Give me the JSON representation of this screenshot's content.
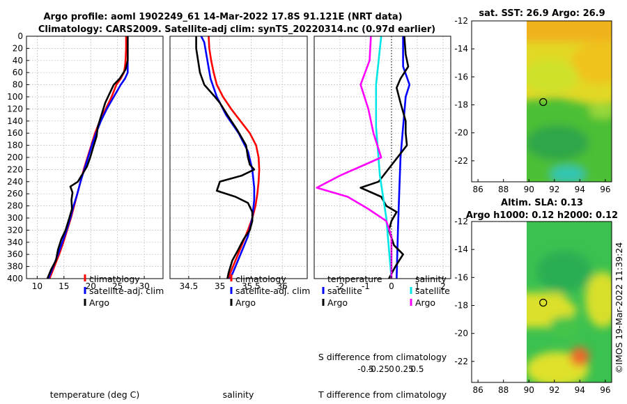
{
  "header": {
    "title_line1": "Argo profile: aoml 1902249_61 14-Mar-2022 17.8S 91.121E (NRT data)",
    "title_line2": "Climatology: CARS2009. Satellite-adj clim: synTS_20220314.nc (0.97d earlier)"
  },
  "colors": {
    "climatology": "#ff0000",
    "satellite": "#0000ff",
    "argo": "#000000",
    "salinity_satellite": "#00e5e5",
    "salinity_argo": "#ff00ff"
  },
  "watermark": "©IMOS 19-Mar-2022 11:39:24",
  "chart_data": [
    {
      "type": "line",
      "id": "temperature",
      "xlabel": "temperature (deg C)",
      "ylabel": "",
      "xlim": [
        8,
        33.5
      ],
      "ylim": [
        400,
        0
      ],
      "xticks": [
        "10",
        "15",
        "20",
        "25",
        "30"
      ],
      "xtick_values": [
        10,
        15,
        20,
        25,
        30
      ],
      "yticks": [
        "0",
        "20",
        "40",
        "60",
        "80",
        "100",
        "120",
        "140",
        "160",
        "180",
        "200",
        "220",
        "240",
        "260",
        "280",
        "300",
        "320",
        "340",
        "360",
        "380",
        "400"
      ],
      "ytick_values": [
        0,
        20,
        40,
        60,
        80,
        100,
        120,
        140,
        160,
        180,
        200,
        220,
        240,
        260,
        280,
        300,
        320,
        340,
        360,
        380,
        400
      ],
      "legend": [
        "climatology",
        "satellite-adj. clim",
        "Argo"
      ],
      "series": [
        {
          "name": "climatology",
          "color": "#ff0000",
          "points": [
            [
              26.6,
              0
            ],
            [
              26.6,
              20
            ],
            [
              26.5,
              40
            ],
            [
              26.4,
              50
            ],
            [
              26.2,
              60
            ],
            [
              25.6,
              70
            ],
            [
              24.8,
              80
            ],
            [
              23.9,
              100
            ],
            [
              22.8,
              120
            ],
            [
              21.7,
              140
            ],
            [
              20.8,
              160
            ],
            [
              20.1,
              180
            ],
            [
              19.4,
              200
            ],
            [
              18.7,
              220
            ],
            [
              18.1,
              240
            ],
            [
              17.5,
              260
            ],
            [
              16.9,
              280
            ],
            [
              16.3,
              300
            ],
            [
              15.6,
              320
            ],
            [
              14.9,
              340
            ],
            [
              14.1,
              360
            ],
            [
              13.2,
              380
            ],
            [
              12.3,
              400
            ]
          ]
        },
        {
          "name": "satellite-adj. clim",
          "color": "#0000ff",
          "points": [
            [
              26.9,
              0
            ],
            [
              26.9,
              20
            ],
            [
              26.9,
              40
            ],
            [
              26.9,
              50
            ],
            [
              26.9,
              60
            ],
            [
              26.4,
              70
            ],
            [
              25.6,
              80
            ],
            [
              24.3,
              100
            ],
            [
              23.0,
              120
            ],
            [
              21.9,
              140
            ],
            [
              21.0,
              160
            ],
            [
              20.2,
              180
            ],
            [
              19.5,
              200
            ],
            [
              18.8,
              220
            ],
            [
              18.1,
              240
            ],
            [
              17.5,
              260
            ],
            [
              16.8,
              280
            ],
            [
              16.2,
              300
            ],
            [
              15.5,
              320
            ],
            [
              14.7,
              340
            ],
            [
              13.9,
              360
            ],
            [
              13.0,
              380
            ],
            [
              12.1,
              400
            ]
          ]
        },
        {
          "name": "Argo",
          "color": "#000000",
          "points": [
            [
              26.9,
              0
            ],
            [
              26.9,
              20
            ],
            [
              26.9,
              40
            ],
            [
              26.5,
              55
            ],
            [
              25.4,
              70
            ],
            [
              24.3,
              80
            ],
            [
              23.5,
              95
            ],
            [
              22.7,
              110
            ],
            [
              22.0,
              130
            ],
            [
              21.3,
              150
            ],
            [
              21.1,
              165
            ],
            [
              20.4,
              185
            ],
            [
              19.9,
              200
            ],
            [
              19.3,
              215
            ],
            [
              17.6,
              240
            ],
            [
              16.2,
              248
            ],
            [
              16.6,
              258
            ],
            [
              16.4,
              270
            ],
            [
              16.5,
              285
            ],
            [
              16.0,
              300
            ],
            [
              15.3,
              320
            ],
            [
              14.5,
              335
            ],
            [
              13.9,
              352
            ],
            [
              13.5,
              370
            ],
            [
              12.6,
              385
            ],
            [
              11.9,
              400
            ]
          ]
        }
      ]
    },
    {
      "type": "line",
      "id": "salinity",
      "xlabel": "salinity",
      "xlim": [
        34.2,
        36.4
      ],
      "ylim": [
        400,
        0
      ],
      "xticks": [
        "34.5",
        "35",
        "35.5",
        "36"
      ],
      "xtick_values": [
        34.5,
        35.0,
        35.5,
        36.0
      ],
      "legend": [
        "climatology",
        "satellite-adj. clim",
        "Argo"
      ],
      "series": [
        {
          "name": "climatology",
          "color": "#ff0000",
          "points": [
            [
              34.82,
              0
            ],
            [
              34.83,
              20
            ],
            [
              34.86,
              40
            ],
            [
              34.9,
              60
            ],
            [
              34.95,
              80
            ],
            [
              35.05,
              100
            ],
            [
              35.18,
              120
            ],
            [
              35.33,
              140
            ],
            [
              35.48,
              160
            ],
            [
              35.58,
              180
            ],
            [
              35.62,
              200
            ],
            [
              35.63,
              220
            ],
            [
              35.62,
              240
            ],
            [
              35.6,
              260
            ],
            [
              35.57,
              280
            ],
            [
              35.52,
              300
            ],
            [
              35.45,
              320
            ],
            [
              35.37,
              340
            ],
            [
              35.29,
              360
            ],
            [
              35.21,
              380
            ],
            [
              35.13,
              400
            ]
          ]
        },
        {
          "name": "satellite-adj. clim",
          "color": "#0000ff",
          "points": [
            [
              34.7,
              0
            ],
            [
              34.75,
              10
            ],
            [
              34.8,
              40
            ],
            [
              34.85,
              70
            ],
            [
              34.95,
              100
            ],
            [
              35.1,
              130
            ],
            [
              35.3,
              160
            ],
            [
              35.45,
              190
            ],
            [
              35.52,
              220
            ],
            [
              35.55,
              250
            ],
            [
              35.55,
              270
            ],
            [
              35.52,
              300
            ],
            [
              35.45,
              330
            ],
            [
              35.37,
              350
            ],
            [
              35.29,
              370
            ],
            [
              35.21,
              390
            ],
            [
              35.16,
              400
            ]
          ]
        },
        {
          "name": "Argo",
          "color": "#000000",
          "points": [
            [
              34.62,
              0
            ],
            [
              34.62,
              20
            ],
            [
              34.65,
              40
            ],
            [
              34.68,
              60
            ],
            [
              34.75,
              80
            ],
            [
              34.92,
              100
            ],
            [
              35.0,
              110
            ],
            [
              35.12,
              130
            ],
            [
              35.28,
              155
            ],
            [
              35.42,
              180
            ],
            [
              35.45,
              200
            ],
            [
              35.48,
              212
            ],
            [
              35.55,
              220
            ],
            [
              35.35,
              230
            ],
            [
              35.0,
              240
            ],
            [
              34.95,
              255
            ],
            [
              35.25,
              265
            ],
            [
              35.45,
              275
            ],
            [
              35.52,
              290
            ],
            [
              35.52,
              305
            ],
            [
              35.48,
              320
            ],
            [
              35.38,
              335
            ],
            [
              35.28,
              355
            ],
            [
              35.2,
              370
            ],
            [
              35.14,
              390
            ],
            [
              35.12,
              400
            ]
          ]
        }
      ]
    },
    {
      "type": "line",
      "id": "difference",
      "xlabel": "T difference from climatology",
      "top_label": "S difference from climatology",
      "xlim": [
        -3,
        2.3
      ],
      "ylim": [
        400,
        0
      ],
      "xticks": [
        "-2",
        "-1",
        "0",
        "1",
        "2"
      ],
      "xtick_values": [
        -2,
        -1,
        0,
        1,
        2
      ],
      "top_ticks": [
        "-0.5",
        "-0.25",
        "0",
        "0.25",
        "0.5"
      ],
      "top_tick_values": [
        -1,
        -0.5,
        0,
        0.5,
        1
      ],
      "legend_temperature": [
        "temperature",
        "satellite",
        "Argo"
      ],
      "legend_salinity": [
        "salinity",
        "satellite",
        "Argo"
      ],
      "series": [
        {
          "name": "temperature satellite",
          "color": "#0000ff",
          "points": [
            [
              0.45,
              0
            ],
            [
              0.45,
              50
            ],
            [
              0.7,
              80
            ],
            [
              0.55,
              100
            ],
            [
              0.45,
              150
            ],
            [
              0.35,
              200
            ],
            [
              0.3,
              260
            ],
            [
              0.25,
              320
            ],
            [
              0.2,
              400
            ]
          ]
        },
        {
          "name": "temperature Argo",
          "color": "#000000",
          "points": [
            [
              0.5,
              0
            ],
            [
              0.55,
              30
            ],
            [
              0.65,
              50
            ],
            [
              0.35,
              70
            ],
            [
              0.2,
              85
            ],
            [
              0.35,
              110
            ],
            [
              0.55,
              140
            ],
            [
              0.55,
              160
            ],
            [
              0.6,
              180
            ],
            [
              -0.5,
              240
            ],
            [
              -1.2,
              250
            ],
            [
              -0.4,
              265
            ],
            [
              -0.2,
              280
            ],
            [
              0.2,
              290
            ],
            [
              0.0,
              305
            ],
            [
              -0.1,
              320
            ],
            [
              0.1,
              345
            ],
            [
              0.45,
              360
            ],
            [
              0.15,
              380
            ],
            [
              -0.1,
              400
            ]
          ]
        },
        {
          "name": "salinity satellite",
          "color": "#00e5e5",
          "points": [
            [
              -0.4,
              0
            ],
            [
              -0.5,
              40
            ],
            [
              -0.6,
              80
            ],
            [
              -0.6,
              150
            ],
            [
              -0.45,
              230
            ],
            [
              -0.2,
              300
            ],
            [
              0.0,
              400
            ]
          ]
        },
        {
          "name": "salinity Argo",
          "color": "#ff00ff",
          "points": [
            [
              -0.8,
              0
            ],
            [
              -0.85,
              40
            ],
            [
              -1.2,
              80
            ],
            [
              -0.9,
              120
            ],
            [
              -0.7,
              160
            ],
            [
              -0.4,
              200
            ],
            [
              -2.0,
              230
            ],
            [
              -2.9,
              250
            ],
            [
              -1.7,
              265
            ],
            [
              -0.9,
              285
            ],
            [
              -0.2,
              305
            ],
            [
              0.0,
              330
            ],
            [
              0.0,
              400
            ]
          ]
        }
      ]
    },
    {
      "type": "heatmap",
      "id": "sst_map",
      "title": "sat. SST: 26.9 Argo: 26.9",
      "xticks": [
        "86",
        "88",
        "90",
        "92",
        "94",
        "96"
      ],
      "yticks": [
        "-12",
        "-14",
        "-16",
        "-18",
        "-20",
        "-22"
      ],
      "xlim": [
        85.5,
        96.5
      ],
      "ylim": [
        -23.5,
        -12
      ],
      "marker": {
        "lon": 91.121,
        "lat": -17.8
      }
    },
    {
      "type": "heatmap",
      "id": "sla_map",
      "title": "Altim. SLA: 0.13",
      "subtitle": "Argo h1000: 0.12 h2000: 0.12",
      "xticks": [
        "86",
        "88",
        "90",
        "92",
        "94",
        "96"
      ],
      "yticks": [
        "-12",
        "-14",
        "-16",
        "-18",
        "-20",
        "-22"
      ],
      "xlim": [
        85.5,
        96.5
      ],
      "ylim": [
        -23.5,
        -12
      ],
      "marker": {
        "lon": 91.121,
        "lat": -17.8
      }
    }
  ]
}
